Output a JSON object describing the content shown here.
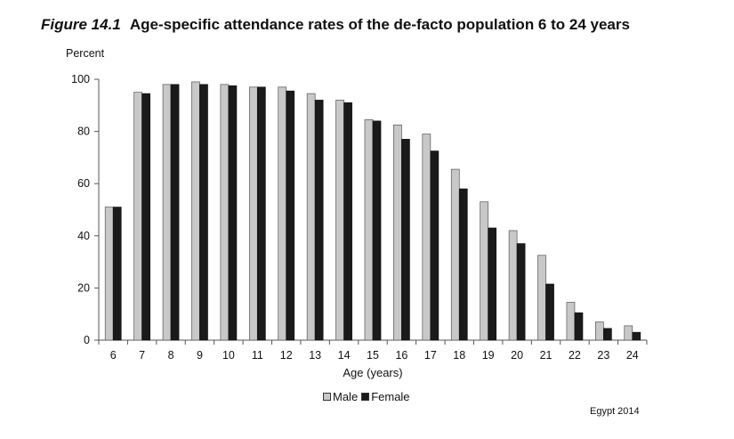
{
  "title_prefix": "Figure 14.1",
  "title": "Age-specific attendance rates of the de-facto population 6 to 24 years",
  "source": "Egypt 2014",
  "colors": {
    "male": "#c8c8c8",
    "female": "#1a1a1a",
    "axis": "#555555"
  },
  "chart_data": {
    "type": "bar",
    "ylabel": "Percent",
    "xlabel": "Age (years)",
    "ylim": [
      0,
      100
    ],
    "yticks": [
      0,
      20,
      40,
      60,
      80,
      100
    ],
    "grid": false,
    "legend_position": "bottom-center",
    "categories": [
      "6",
      "7",
      "8",
      "9",
      "10",
      "11",
      "12",
      "13",
      "14",
      "15",
      "16",
      "17",
      "18",
      "19",
      "20",
      "21",
      "22",
      "23",
      "24"
    ],
    "series": [
      {
        "name": "Male",
        "values": [
          51,
          95,
          98,
          99,
          98,
          97,
          97,
          94.5,
          92,
          84.5,
          82.5,
          79,
          65.5,
          53,
          42,
          32.5,
          14.5,
          7,
          5.5
        ]
      },
      {
        "name": "Female",
        "values": [
          51,
          94.5,
          98,
          98,
          97.5,
          97,
          95.5,
          92,
          91,
          84,
          77,
          72.5,
          58,
          43,
          37,
          21.5,
          10.5,
          4.5,
          3
        ]
      }
    ]
  }
}
